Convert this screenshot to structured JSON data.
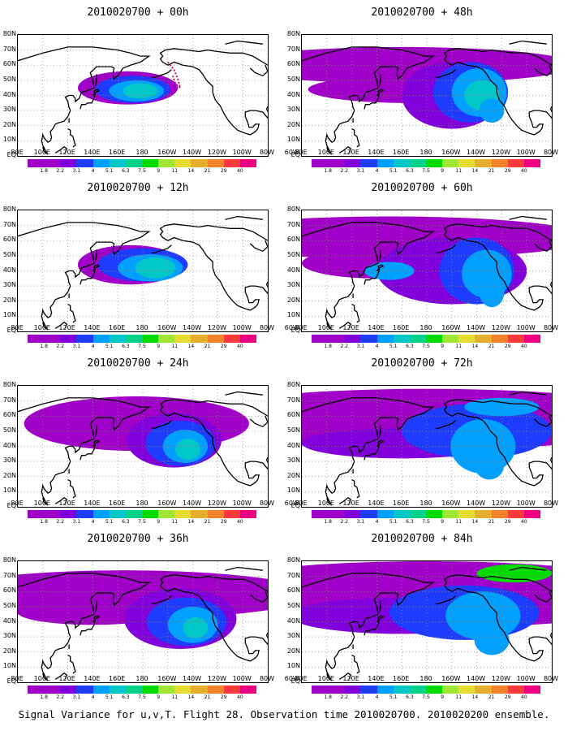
{
  "caption": "Signal Variance for u,v,T. Flight 28. Observation time 2010020700. 2010020200 ensemble.",
  "colorbar": {
    "labels": [
      "1.8",
      "2.2",
      "3.1",
      "4",
      "5.1",
      "6.3",
      "7.5",
      "9",
      "11",
      "14",
      "21",
      "29",
      "40"
    ],
    "colors": [
      "#a000c8",
      "#8200dc",
      "#1e3cff",
      "#00a0ff",
      "#00c8c8",
      "#00d28c",
      "#00dc00",
      "#a0e632",
      "#e6dc32",
      "#e6af2d",
      "#f08228",
      "#fa3c3c",
      "#f00082"
    ]
  },
  "axes": {
    "y_ticks": [
      "80N",
      "70N",
      "60N",
      "50N",
      "40N",
      "30N",
      "20N",
      "10N",
      "EQ"
    ],
    "x_ticks": [
      "80E",
      "100E",
      "120E",
      "140E",
      "160E",
      "180",
      "160W",
      "140W",
      "120W",
      "100W",
      "80W",
      "60W"
    ]
  },
  "panels": [
    {
      "title": "2010020700 + 00h"
    },
    {
      "title": "2010020700 + 48h"
    },
    {
      "title": "2010020700 + 12h"
    },
    {
      "title": "2010020700 + 60h"
    },
    {
      "title": "2010020700 + 24h"
    },
    {
      "title": "2010020700 + 72h"
    },
    {
      "title": "2010020700 + 36h"
    },
    {
      "title": "2010020700 + 84h"
    }
  ],
  "chart_data": {
    "type": "heatmap",
    "title": "Signal Variance for u,v,T. Flight 28. Observation time 2010020700. 2010020200 ensemble.",
    "xlim": [
      "80E",
      "60W"
    ],
    "ylim": [
      "EQ",
      "80N"
    ],
    "x_ticks": [
      "80E",
      "100E",
      "120E",
      "140E",
      "160E",
      "180",
      "160W",
      "140W",
      "120W",
      "100W",
      "80W",
      "60W"
    ],
    "y_ticks": [
      "80N",
      "70N",
      "60N",
      "50N",
      "40N",
      "30N",
      "20N",
      "10N",
      "EQ"
    ],
    "color_levels": [
      1.8,
      2.2,
      3.1,
      4,
      5.1,
      6.3,
      7.5,
      9,
      11,
      14,
      21,
      29,
      40
    ],
    "grid": true,
    "panels": [
      {
        "lead": "00h",
        "max_level": 6.3,
        "center": [
          "160W",
          "45N"
        ]
      },
      {
        "lead": "12h",
        "max_level": 7.5,
        "center": [
          "165W",
          "40N"
        ]
      },
      {
        "lead": "24h",
        "max_level": 7.5,
        "center": [
          "150W",
          "42N"
        ]
      },
      {
        "lead": "36h",
        "max_level": 7.5,
        "center": [
          "140W",
          "40N"
        ]
      },
      {
        "lead": "48h",
        "max_level": 6.3,
        "center": [
          "140W",
          "40N"
        ]
      },
      {
        "lead": "60h",
        "max_level": 7.5,
        "center": [
          "130W",
          "40N"
        ]
      },
      {
        "lead": "72h",
        "max_level": 7.5,
        "center": [
          "130W",
          "45N"
        ]
      },
      {
        "lead": "84h",
        "max_level": 7.5,
        "center": [
          "130W",
          "50N"
        ]
      }
    ]
  }
}
